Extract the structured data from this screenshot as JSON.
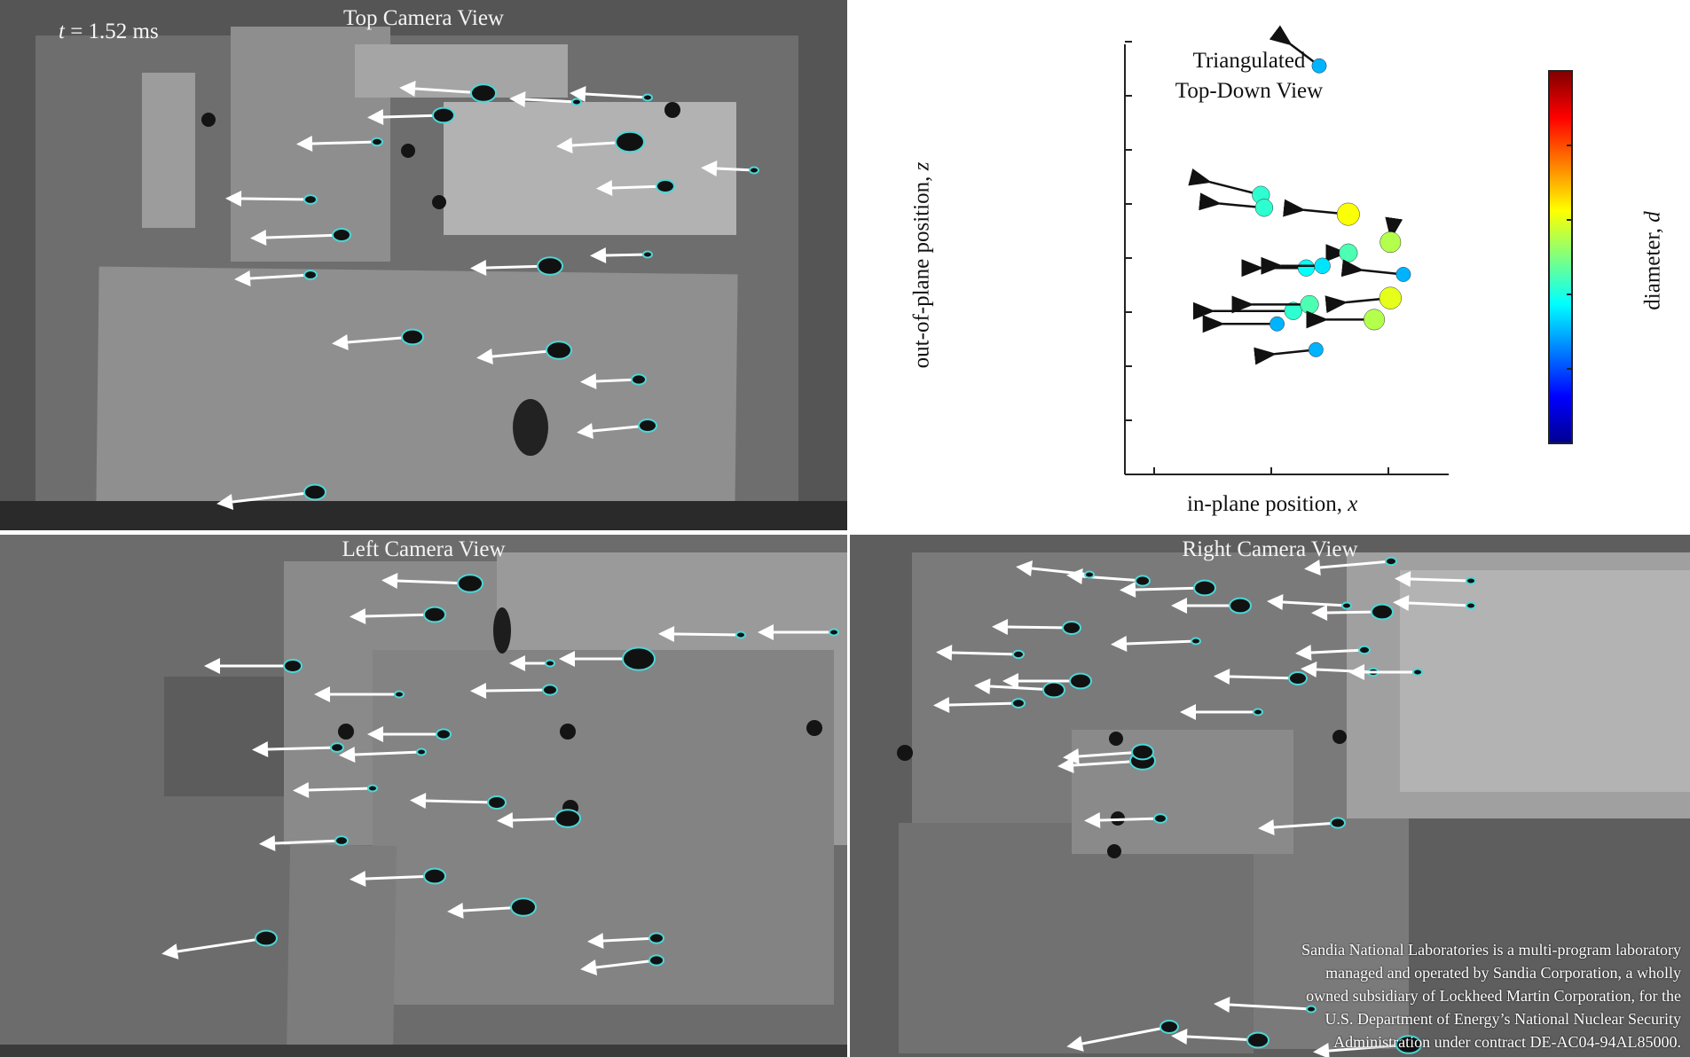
{
  "time_label": {
    "symbol": "t",
    "value": "= 1.52 ms"
  },
  "panels": {
    "top": {
      "title": "Top Camera View"
    },
    "left": {
      "title": "Left Camera View"
    },
    "right": {
      "title": "Right Camera View"
    }
  },
  "credit": [
    "Sandia National Laboratories is a multi-program laboratory",
    "managed and operated by Sandia Corporation, a wholly",
    "owned subsidiary of Lockheed Martin Corporation, for the",
    "U.S. Department of Energy’s National Nuclear Security",
    "Administration under contract DE-AC04-94AL85000."
  ],
  "colors": {
    "arrow": "#ffffff",
    "chart_arrow": "#111111",
    "panel_bg": "#5a5a5a"
  },
  "chart_data": {
    "type": "scatter",
    "title": "Triangulated Top-Down View",
    "title_lines": [
      "Triangulated",
      "Top-Down View"
    ],
    "xlabel": "in-plane position, x",
    "ylabel": "out-of-plane position, z",
    "colorbar_label": "diameter, d",
    "colorbar_colormap": "jet",
    "xlim": [
      0,
      10
    ],
    "ylim": [
      0,
      10
    ],
    "grid": false,
    "points": [
      {
        "x": 6.0,
        "y": 9.5,
        "c": 0.3,
        "dx": -1.1,
        "dy": 0.5
      },
      {
        "x": 4.2,
        "y": 6.5,
        "c": 0.42,
        "dx": -1.8,
        "dy": 0.3
      },
      {
        "x": 4.3,
        "y": 6.2,
        "c": 0.42,
        "dx": -1.6,
        "dy": 0.1
      },
      {
        "x": 6.9,
        "y": 6.05,
        "c": 0.62,
        "dx": -1.6,
        "dy": 0.1
      },
      {
        "x": 8.2,
        "y": 5.4,
        "c": 0.55,
        "dx": -0.2,
        "dy": 0.1
      },
      {
        "x": 6.9,
        "y": 5.15,
        "c": 0.45,
        "dx": -0.3,
        "dy": 0.0
      },
      {
        "x": 5.6,
        "y": 4.8,
        "c": 0.38,
        "dx": -1.6,
        "dy": 0.0
      },
      {
        "x": 6.1,
        "y": 4.85,
        "c": 0.35,
        "dx": -1.5,
        "dy": 0.0
      },
      {
        "x": 8.6,
        "y": 4.65,
        "c": 0.3,
        "dx": -1.5,
        "dy": 0.1
      },
      {
        "x": 8.2,
        "y": 4.1,
        "c": 0.6,
        "dx": -1.6,
        "dy": -0.1
      },
      {
        "x": 5.2,
        "y": 3.8,
        "c": 0.42,
        "dx": -2.7,
        "dy": 0.0
      },
      {
        "x": 5.7,
        "y": 3.95,
        "c": 0.45,
        "dx": -2.0,
        "dy": 0.0
      },
      {
        "x": 7.7,
        "y": 3.6,
        "c": 0.55,
        "dx": -1.7,
        "dy": 0.0
      },
      {
        "x": 4.7,
        "y": 3.5,
        "c": 0.3,
        "dx": -1.9,
        "dy": 0.0
      },
      {
        "x": 5.9,
        "y": 2.9,
        "c": 0.3,
        "dx": -1.5,
        "dy": -0.1
      }
    ]
  }
}
